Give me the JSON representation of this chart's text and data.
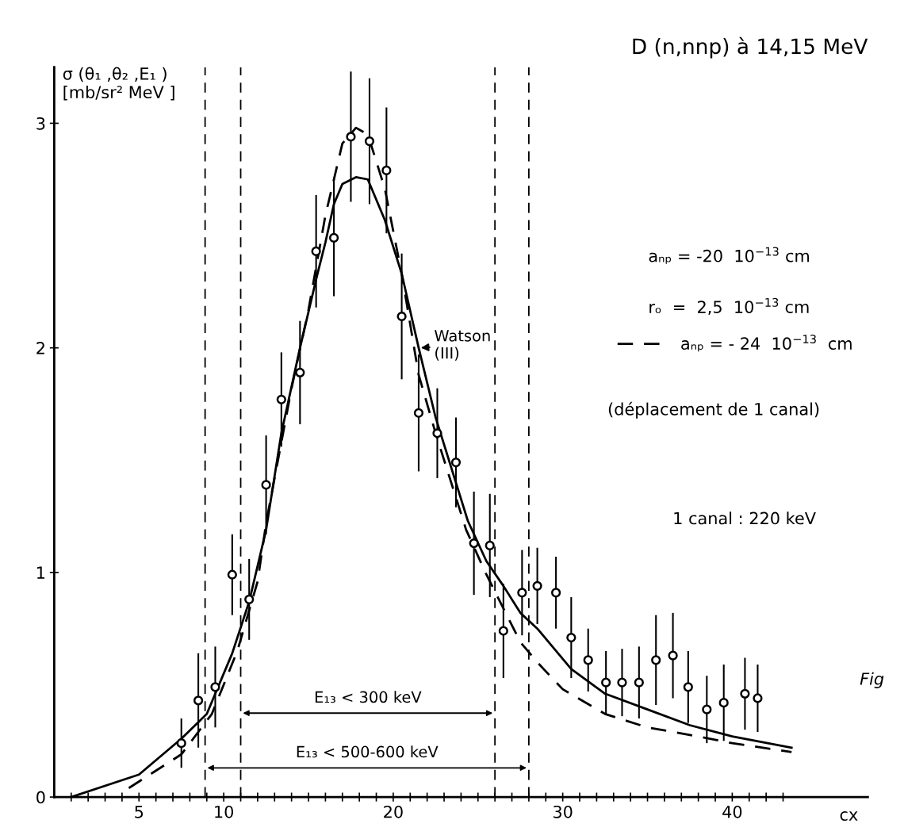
{
  "chart_data": {
    "type": "scatter",
    "title": "D (n,nnp) à 14,15 MeV",
    "xlabel": "cx",
    "ylabel": "σ (θ₁ ,θ₂ ,E₁ )\n[mb/sr² MeV ]",
    "xlim": [
      0,
      48
    ],
    "ylim": [
      0,
      3.25
    ],
    "yticks": [
      0,
      1,
      2,
      3
    ],
    "xticks": [
      {
        "value": 1,
        "label": null
      },
      {
        "value": 2,
        "label": null
      },
      {
        "value": 3,
        "label": null
      },
      {
        "value": 4,
        "label": null
      },
      5,
      {
        "value": 6,
        "label": null
      },
      {
        "value": 7,
        "label": null
      },
      {
        "value": 8,
        "label": null
      },
      {
        "value": 9,
        "label": null
      },
      10,
      {
        "value": 11,
        "label": null
      },
      {
        "value": 12,
        "label": null
      },
      {
        "value": 13,
        "label": null
      },
      {
        "value": 14,
        "label": null
      },
      {
        "value": 15,
        "label": null
      },
      {
        "value": 16,
        "label": null
      },
      {
        "value": 17,
        "label": null
      },
      {
        "value": 18,
        "label": null
      },
      {
        "value": 19,
        "label": null
      },
      20,
      {
        "value": 21,
        "label": null
      },
      {
        "value": 22,
        "label": null
      },
      {
        "value": 23,
        "label": null
      },
      {
        "value": 24,
        "label": null
      },
      {
        "value": 25,
        "label": null
      },
      {
        "value": 26,
        "label": null
      },
      {
        "value": 27,
        "label": null
      },
      {
        "value": 28,
        "label": null
      },
      {
        "value": 29,
        "label": null
      },
      30,
      {
        "value": 31,
        "label": null
      },
      {
        "value": 32,
        "label": null
      },
      {
        "value": 33,
        "label": null
      },
      {
        "value": 34,
        "label": null
      },
      {
        "value": 35,
        "label": null
      },
      {
        "value": 36,
        "label": null
      },
      {
        "value": 37,
        "label": null
      },
      {
        "value": 38,
        "label": null
      },
      {
        "value": 39,
        "label": null
      },
      40,
      {
        "value": 41,
        "label": null
      },
      {
        "value": 42,
        "label": null
      },
      {
        "value": 43,
        "label": null
      }
    ],
    "grid": false,
    "legend": "right",
    "series": [
      {
        "color": "#000000",
        "marker": "circle",
        "x": [
          7.5,
          8.5,
          9.5,
          10.5,
          11.5,
          12.5,
          13.4,
          14.5,
          15.45,
          16.5,
          17.5,
          18.6,
          19.6,
          20.5,
          21.5,
          22.6,
          23.7,
          24.76,
          25.7,
          26.5,
          27.6,
          28.5,
          29.6,
          30.5,
          31.5,
          32.55,
          33.5,
          34.5,
          35.5,
          36.5,
          37.4,
          38.5,
          39.5,
          40.75,
          41.5
        ],
        "values": [
          0.24,
          0.43,
          0.49,
          0.99,
          0.88,
          1.39,
          1.77,
          1.89,
          2.43,
          2.49,
          2.94,
          2.92,
          2.79,
          2.14,
          1.71,
          1.62,
          1.49,
          1.13,
          1.12,
          0.74,
          0.91,
          0.94,
          0.91,
          0.71,
          0.61,
          0.51,
          0.51,
          0.51,
          0.61,
          0.63,
          0.49,
          0.39,
          0.42,
          0.46,
          0.44
        ],
        "errors": [
          0.11,
          0.21,
          0.18,
          0.18,
          0.18,
          0.22,
          0.21,
          0.23,
          0.25,
          0.26,
          0.29,
          0.28,
          0.28,
          0.28,
          0.26,
          0.2,
          0.2,
          0.23,
          0.23,
          0.21,
          0.19,
          0.17,
          0.16,
          0.18,
          0.14,
          0.14,
          0.15,
          0.16,
          0.2,
          0.19,
          0.16,
          0.15,
          0.17,
          0.16,
          0.15
        ]
      },
      {
        "type": "line",
        "name": "Watson\n(III)",
        "color": "#000000",
        "line_style": "solid",
        "marker": "none",
        "x": [
          1,
          5,
          7.5,
          9,
          10.5,
          11.5,
          12.5,
          13.4,
          14.5,
          15.5,
          16,
          16.5,
          17,
          17.8,
          18.5,
          19.5,
          20.5,
          21.5,
          22.5,
          24.4,
          25.5,
          26.5,
          27.5,
          28.5,
          30.5,
          32.5,
          35,
          37.5,
          40,
          43.5
        ],
        "values": [
          0,
          0.1,
          0.26,
          0.37,
          0.64,
          0.87,
          1.19,
          1.62,
          2.0,
          2.32,
          2.47,
          2.64,
          2.73,
          2.76,
          2.75,
          2.57,
          2.33,
          2.0,
          1.69,
          1.23,
          1.05,
          0.94,
          0.82,
          0.75,
          0.57,
          0.46,
          0.39,
          0.32,
          0.27,
          0.22
        ]
      },
      {
        "type": "line",
        "name": "aₙₚ = - 24  10$^{−13}$  cm",
        "color": "#000000",
        "line_style": "dashed",
        "marker": "none",
        "x": [
          4.4,
          7.5,
          9.3,
          10.8,
          12,
          12.5,
          14,
          15,
          16,
          17,
          17.8,
          18.5,
          19.5,
          20.5,
          21.5,
          22.5,
          24.3,
          25.5,
          27.5,
          28.5,
          30,
          32.5,
          35,
          38,
          40,
          43.5
        ],
        "values": [
          0.04,
          0.19,
          0.37,
          0.65,
          0.96,
          1.22,
          1.82,
          2.17,
          2.59,
          2.91,
          2.98,
          2.95,
          2.71,
          2.33,
          1.88,
          1.62,
          1.19,
          0.99,
          0.69,
          0.6,
          0.48,
          0.37,
          0.31,
          0.27,
          0.24,
          0.2
        ]
      }
    ],
    "ref_lines": [
      {
        "axis": "x",
        "value": 11,
        "line_style": "dashed"
      },
      {
        "axis": "x",
        "value": 26,
        "line_style": "dashed"
      },
      {
        "axis": "x",
        "value": 8.9,
        "line_style": "dashed"
      },
      {
        "axis": "x",
        "value": 28,
        "line_style": "dashed"
      }
    ],
    "annotations": [
      "E₁₃ < 300 keV",
      "E₁₃ < 500-600 keV",
      "aₙₚ = -20  10$^{−13}$ cm",
      "rₒ  =  2,5  10$^{−13}$ cm",
      "(déplacement de 1 canal)",
      "1 canal : 220 keV",
      "Fig"
    ]
  }
}
